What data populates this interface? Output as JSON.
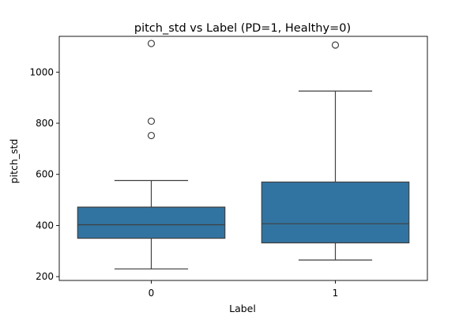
{
  "chart_data": {
    "type": "box",
    "title": "pitch_std vs Label (PD=1, Healthy=0)",
    "xlabel": "Label",
    "ylabel": "pitch_std",
    "categories": [
      "0",
      "1"
    ],
    "ylim": [
      185,
      1140
    ],
    "yticks": [
      200,
      400,
      600,
      800,
      1000
    ],
    "ytick_labels": [
      "200",
      "400",
      "600",
      "800",
      "1000"
    ],
    "grid": false,
    "box_color": "#3274a1",
    "edge_color": "#3f3f3f",
    "boxes": [
      {
        "category": "0",
        "whisker_low": 230,
        "q1": 350,
        "median": 403,
        "q3": 472,
        "whisker_high": 576,
        "outliers": [
          752,
          808,
          1112
        ]
      },
      {
        "category": "1",
        "whisker_low": 265,
        "q1": 332,
        "median": 407,
        "q3": 570,
        "whisker_high": 926,
        "outliers": [
          1106
        ]
      }
    ]
  }
}
